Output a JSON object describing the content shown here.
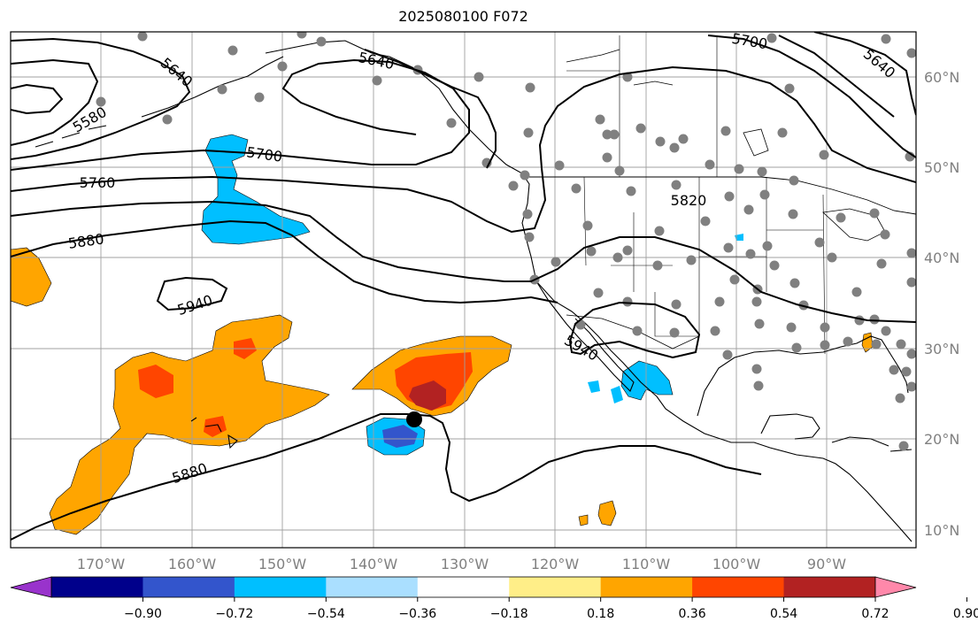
{
  "title": "2025080100 F072",
  "lon_labels": [
    "170°W",
    "160°W",
    "150°W",
    "140°W",
    "130°W",
    "120°W",
    "110°W",
    "100°W",
    "90°W"
  ],
  "lat_labels": [
    "60°N",
    "50°N",
    "40°N",
    "30°N",
    "20°N",
    "10°N"
  ],
  "contour_labels": [
    "5580",
    "5640",
    "5640",
    "5640",
    "5700",
    "5700",
    "5760",
    "5820",
    "5880",
    "5880",
    "5940",
    "5940"
  ],
  "colorbar": {
    "tick_labels": [
      "−0.90",
      "−0.72",
      "−0.54",
      "−0.36",
      "−0.18",
      "0.18",
      "0.36",
      "0.54",
      "0.72",
      "0.90"
    ],
    "colors": [
      "#9933cc",
      "#00008b",
      "#3355cc",
      "#00bfff",
      "#aadfff",
      "#ffffff",
      "#ffee88",
      "#ffa500",
      "#ff4500",
      "#b22222",
      "#ff88aa"
    ]
  },
  "marker": "storm-center"
}
